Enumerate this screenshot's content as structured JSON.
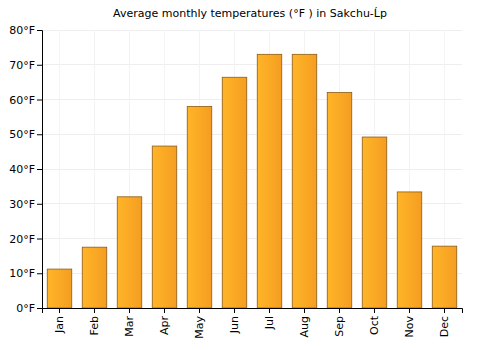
{
  "chart_data": {
    "type": "bar",
    "title": "Average monthly temperatures (°F ) in Sakchu-Ĺ­p",
    "categories": [
      "Jan",
      "Feb",
      "Mar",
      "Apr",
      "May",
      "Jun",
      "Jul",
      "Aug",
      "Sep",
      "Oct",
      "Nov",
      "Dec"
    ],
    "values": [
      11.2,
      17.5,
      32,
      46.6,
      58,
      66.4,
      73,
      73,
      62,
      49.2,
      33.4,
      17.8
    ],
    "color": "#f9a023",
    "ylim": [
      0,
      80
    ],
    "yticks": [
      {
        "value": 0,
        "label": "0°F"
      },
      {
        "value": 10,
        "label": "10°F"
      },
      {
        "value": 20,
        "label": "20°F"
      },
      {
        "value": 30,
        "label": "30°F"
      },
      {
        "value": 40,
        "label": "40°F"
      },
      {
        "value": 50,
        "label": "50°F"
      },
      {
        "value": 60,
        "label": "60°F"
      },
      {
        "value": 70,
        "label": "70°F"
      },
      {
        "value": 80,
        "label": "80°F"
      }
    ],
    "grid": true
  }
}
